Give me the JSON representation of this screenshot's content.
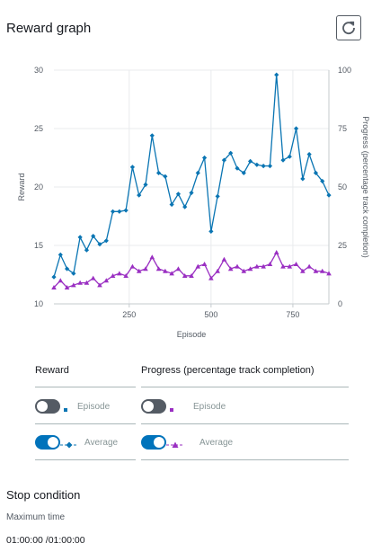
{
  "header": {
    "title": "Reward graph",
    "refresh_icon": "refresh-icon"
  },
  "chart_data": {
    "type": "line",
    "xlabel": "Episode",
    "ylabel": "Reward",
    "y2label": "Progress (percentage track completion)",
    "xlim": [
      20,
      860
    ],
    "ylim": [
      10,
      30
    ],
    "y2lim": [
      0,
      100
    ],
    "xticks": [
      250,
      500,
      750
    ],
    "yticks": [
      10,
      15,
      20,
      25,
      30
    ],
    "y2ticks": [
      0,
      25,
      50,
      75,
      100
    ],
    "grid": true,
    "x": [
      20,
      40,
      60,
      80,
      100,
      120,
      140,
      160,
      180,
      200,
      220,
      240,
      260,
      280,
      300,
      320,
      340,
      360,
      380,
      400,
      420,
      440,
      460,
      480,
      500,
      520,
      540,
      560,
      580,
      600,
      620,
      640,
      660,
      680,
      700,
      720,
      740,
      760,
      780,
      800,
      820,
      840,
      860
    ],
    "series": [
      {
        "name": "Reward",
        "axis": "left",
        "color": "#0a75b3",
        "marker": "diamond",
        "values": [
          12.3,
          14.2,
          13.0,
          12.6,
          15.7,
          14.6,
          15.8,
          15.1,
          15.4,
          17.9,
          17.9,
          18.0,
          21.7,
          19.3,
          20.2,
          24.4,
          21.2,
          20.9,
          18.5,
          19.4,
          18.3,
          19.5,
          21.2,
          22.5,
          16.2,
          19.2,
          22.3,
          22.9,
          21.6,
          21.2,
          22.2,
          21.9,
          21.8,
          21.8,
          29.6,
          22.3,
          22.6,
          25.0,
          20.7,
          22.8,
          21.2,
          20.5,
          19.3
        ]
      },
      {
        "name": "Progress",
        "axis": "right",
        "color": "#9a2fc2",
        "marker": "triangle",
        "values": [
          7,
          10,
          7,
          8,
          9,
          9,
          11,
          8,
          10,
          12,
          13,
          12,
          16,
          14,
          15,
          20,
          15,
          14,
          13,
          15,
          12,
          12,
          16,
          17,
          11,
          14,
          19,
          15,
          16,
          14,
          15,
          16,
          16,
          17,
          22,
          16,
          16,
          17,
          14,
          16,
          14,
          14,
          13
        ]
      }
    ]
  },
  "legend": {
    "reward_header": "Reward",
    "progress_header": "Progress (percentage track completion)",
    "episode_label": "Episode",
    "average_label": "Average",
    "reward_episode_toggle": "off",
    "reward_average_toggle": "on",
    "progress_episode_toggle": "off",
    "progress_average_toggle": "on",
    "reward_color": "#0a75b3",
    "progress_color": "#9a2fc2"
  },
  "stop_condition": {
    "title": "Stop condition",
    "label": "Maximum time",
    "value": "01:00:00 /01:00:00"
  }
}
